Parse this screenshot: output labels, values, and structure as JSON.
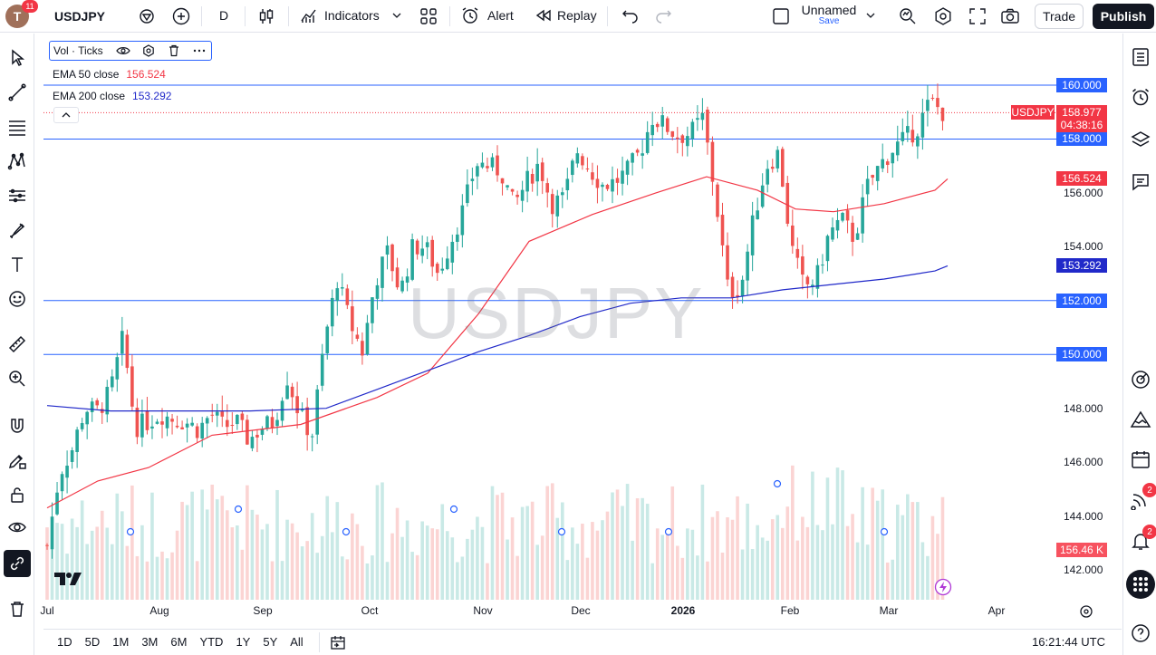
{
  "topbar": {
    "avatar_letter": "T",
    "notifications": "11",
    "symbol": "USDJPY",
    "interval": "D",
    "indicators_label": "Indicators",
    "alert_label": "Alert",
    "replay_label": "Replay",
    "layout_name": "Unnamed",
    "save_label": "Save",
    "trade_label": "Trade",
    "publish_label": "Publish"
  },
  "legend": {
    "vol_title": "Vol · Ticks",
    "ema50_label": "EMA 50 close",
    "ema50_value": "156.524",
    "ema200_label": "EMA 200 close",
    "ema200_value": "153.292"
  },
  "watermark": "USDJPY",
  "price_axis": {
    "ticks": [
      "160.000",
      "158.000",
      "156.000",
      "154.000",
      "152.000",
      "150.000",
      "148.000",
      "146.000",
      "144.000",
      "142.000"
    ],
    "symbol_tag": "USDJPY",
    "last_price": "158.977",
    "countdown": "04:38:16",
    "ema50_tag": "156.524",
    "ema200_tag": "153.292",
    "level_160": "160.000",
    "level_158": "158.000",
    "level_152": "152.000",
    "level_150": "150.000",
    "volume_tag": "156.46 K"
  },
  "time_axis": {
    "ticks": [
      "Jul",
      "Aug",
      "Sep",
      "Oct",
      "Nov",
      "Dec",
      "2026",
      "Feb",
      "Mar",
      "Apr"
    ]
  },
  "bottombar": {
    "ranges": [
      "1D",
      "5D",
      "1M",
      "3M",
      "6M",
      "YTD",
      "1Y",
      "5Y",
      "All"
    ],
    "clock": "16:21:44 UTC"
  },
  "right_badges": {
    "signals": "2",
    "alerts": "2"
  },
  "colors": {
    "up": "#26a69a",
    "down": "#ef5350",
    "ema50": "#f23645",
    "ema200": "#2129c9",
    "level_line": "#2962ff"
  },
  "chart_data": {
    "type": "candlestick",
    "symbol": "USDJPY",
    "interval": "D",
    "y_range": [
      141,
      161.5
    ],
    "horizontal_levels": [
      160,
      158,
      152,
      150
    ],
    "last_price": 158.977,
    "ema50_last": 156.524,
    "ema200_last": 153.292,
    "close_path": [
      [
        0,
        142.9
      ],
      [
        10,
        145.6
      ],
      [
        20,
        146.5
      ],
      [
        30,
        148.0
      ],
      [
        40,
        147.9
      ],
      [
        50,
        148.6
      ],
      [
        60,
        150.6
      ],
      [
        70,
        147.3
      ],
      [
        80,
        147.5
      ],
      [
        90,
        147.8
      ],
      [
        100,
        147.6
      ],
      [
        110,
        147.5
      ],
      [
        120,
        147.2
      ],
      [
        130,
        147.8
      ],
      [
        140,
        147.3
      ],
      [
        150,
        147.5
      ],
      [
        160,
        146.8
      ],
      [
        170,
        147.3
      ],
      [
        180,
        147.5
      ],
      [
        190,
        149.2
      ],
      [
        200,
        147.8
      ],
      [
        210,
        147.0
      ],
      [
        220,
        150.5
      ],
      [
        230,
        152.8
      ],
      [
        240,
        151.2
      ],
      [
        250,
        150.1
      ],
      [
        260,
        152.7
      ],
      [
        270,
        153.8
      ],
      [
        280,
        152.3
      ],
      [
        290,
        154.0
      ],
      [
        300,
        154.0
      ],
      [
        310,
        153.0
      ],
      [
        320,
        154.2
      ],
      [
        330,
        155.4
      ],
      [
        340,
        157.1
      ],
      [
        350,
        157.0
      ],
      [
        360,
        156.8
      ],
      [
        370,
        155.5
      ],
      [
        380,
        156.4
      ],
      [
        390,
        157.1
      ],
      [
        400,
        155.6
      ],
      [
        410,
        155.8
      ],
      [
        420,
        157.6
      ],
      [
        430,
        156.9
      ],
      [
        440,
        156.3
      ],
      [
        450,
        156.4
      ],
      [
        460,
        156.8
      ],
      [
        470,
        157.5
      ],
      [
        480,
        158.8
      ],
      [
        490,
        158.5
      ],
      [
        500,
        158.1
      ],
      [
        510,
        158.2
      ],
      [
        520,
        158.8
      ],
      [
        530,
        155.8
      ],
      [
        540,
        152.3
      ],
      [
        550,
        152.5
      ],
      [
        560,
        155.0
      ],
      [
        570,
        157.0
      ],
      [
        580,
        157.5
      ],
      [
        590,
        154.0
      ],
      [
        600,
        152.5
      ],
      [
        610,
        152.8
      ],
      [
        620,
        154.5
      ],
      [
        630,
        155.0
      ],
      [
        640,
        154.3
      ],
      [
        650,
        156.2
      ],
      [
        660,
        157.0
      ],
      [
        670,
        157.6
      ],
      [
        680,
        158.0
      ],
      [
        690,
        158.4
      ],
      [
        700,
        159.4
      ],
      [
        710,
        159.0
      ]
    ],
    "ema50_path": [
      [
        0,
        144.3
      ],
      [
        40,
        145.3
      ],
      [
        80,
        145.8
      ],
      [
        130,
        147.0
      ],
      [
        200,
        147.4
      ],
      [
        260,
        148.4
      ],
      [
        300,
        149.3
      ],
      [
        340,
        151.5
      ],
      [
        380,
        154.2
      ],
      [
        430,
        155.2
      ],
      [
        480,
        156.0
      ],
      [
        520,
        156.6
      ],
      [
        560,
        156.1
      ],
      [
        590,
        155.4
      ],
      [
        620,
        155.3
      ],
      [
        660,
        155.6
      ],
      [
        700,
        156.1
      ],
      [
        710,
        156.52
      ]
    ],
    "ema200_path": [
      [
        0,
        148.1
      ],
      [
        50,
        147.9
      ],
      [
        100,
        147.9
      ],
      [
        160,
        147.9
      ],
      [
        220,
        148.0
      ],
      [
        260,
        148.7
      ],
      [
        300,
        149.4
      ],
      [
        340,
        150.1
      ],
      [
        380,
        150.7
      ],
      [
        420,
        151.4
      ],
      [
        460,
        151.9
      ],
      [
        500,
        152.1
      ],
      [
        540,
        152.1
      ],
      [
        580,
        152.4
      ],
      [
        620,
        152.6
      ],
      [
        660,
        152.8
      ],
      [
        700,
        153.1
      ],
      [
        710,
        153.29
      ]
    ],
    "volume_note": "volume histogram in lower pane"
  }
}
